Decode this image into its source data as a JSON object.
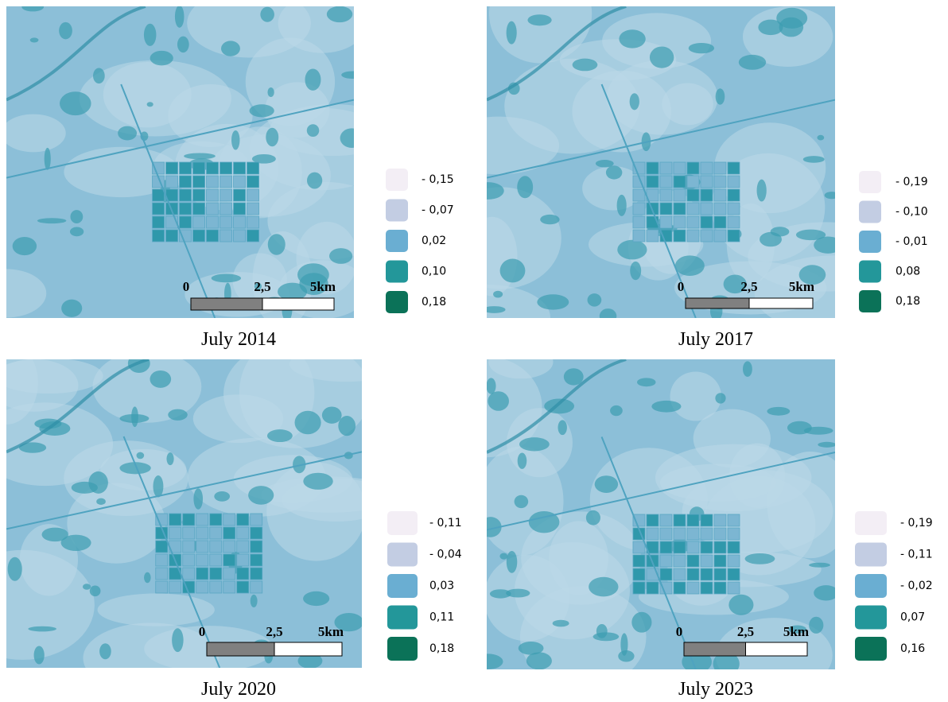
{
  "panels": [
    {
      "caption": "July 2014",
      "legend": {
        "labels": [
          "- 0,15",
          "- 0,07",
          "0,02",
          "0,10",
          "0,18"
        ]
      },
      "scale_bar": {
        "labels": [
          "0",
          "2,5",
          "5km"
        ]
      }
    },
    {
      "caption": "July 2017",
      "legend": {
        "labels": [
          "- 0,19",
          "- 0,10",
          "- 0,01",
          "0,08",
          "0,18"
        ]
      },
      "scale_bar": {
        "labels": [
          "0",
          "2,5",
          "5km"
        ]
      }
    },
    {
      "caption": "July 2020",
      "legend": {
        "labels": [
          "- 0,11",
          "- 0,04",
          "0,03",
          "0,11",
          "0,18"
        ]
      },
      "scale_bar": {
        "labels": [
          "0",
          "2,5",
          "5km"
        ]
      }
    },
    {
      "caption": "July 2023",
      "legend": {
        "labels": [
          "- 0,19",
          "- 0,11",
          "- 0,02",
          "0,07",
          "0,16"
        ]
      },
      "scale_bar": {
        "labels": [
          "0",
          "2,5",
          "5km"
        ]
      }
    }
  ],
  "legend_colors": [
    "#f3eef5",
    "#c3cde3",
    "#6aaed2",
    "#23979a",
    "#0b7258"
  ]
}
